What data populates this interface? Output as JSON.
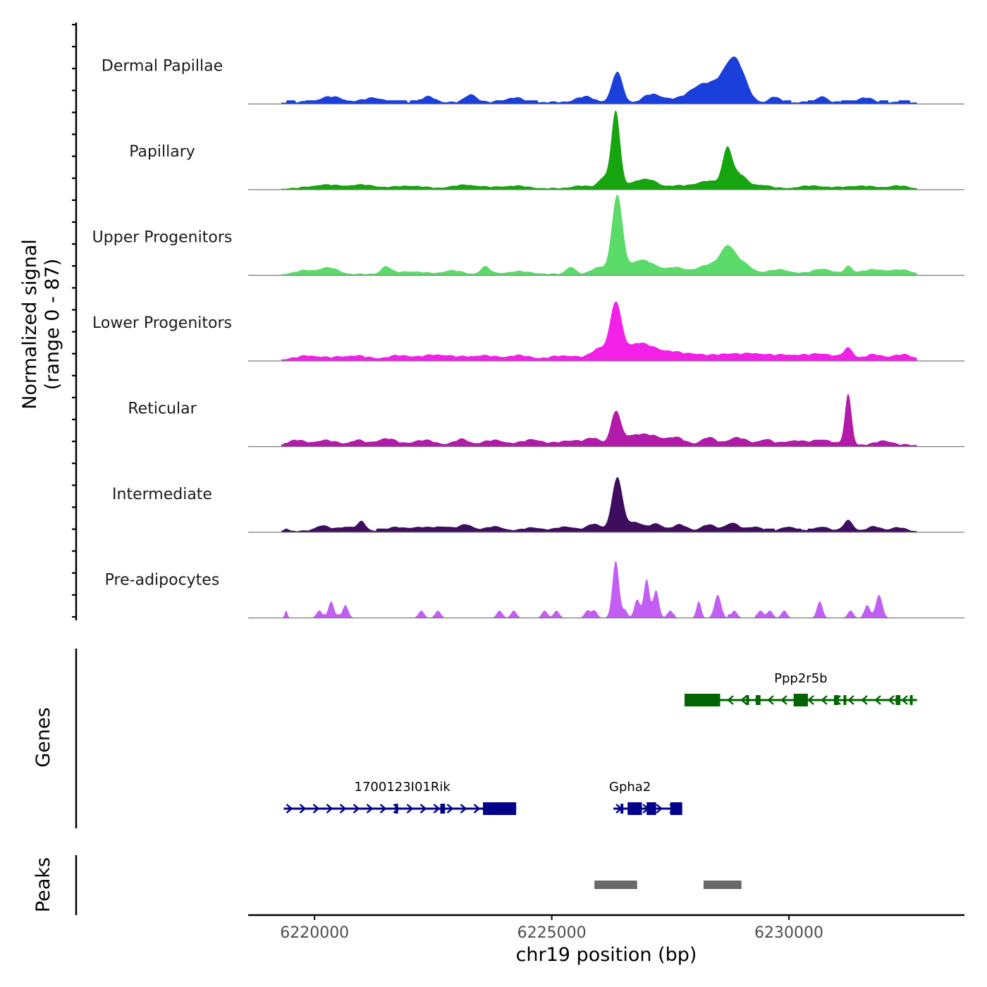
{
  "chart_data": {
    "type": "area",
    "title": "",
    "signal_panel": {
      "ylabel_line1": "Normalized signal",
      "ylabel_line2": "(range 0 - 87)",
      "ylim": [
        0,
        87
      ],
      "x_domain": [
        6218600,
        6233700
      ],
      "data_x_range": [
        6219300,
        6232700
      ],
      "tracks": [
        {
          "name": "Dermal Papillae",
          "color": "#1A3FDB",
          "baseline": 3,
          "peaks": [
            [
              6220350,
              6,
              250
            ],
            [
              6221250,
              5,
              200
            ],
            [
              6222400,
              6,
              150
            ],
            [
              6223300,
              9,
              120
            ],
            [
              6224200,
              5,
              200
            ],
            [
              6225700,
              6,
              200
            ],
            [
              6226380,
              33,
              110
            ],
            [
              6227050,
              6,
              150
            ],
            [
              6227300,
              5,
              200
            ],
            [
              6228200,
              20,
              300
            ],
            [
              6228750,
              30,
              200
            ],
            [
              6228950,
              24,
              180
            ],
            [
              6229700,
              6,
              100
            ],
            [
              6230700,
              7,
              100
            ],
            [
              6231600,
              5,
              150
            ]
          ],
          "bins": [
            [
              6219400,
              6219600
            ],
            [
              6219800,
              6220100
            ],
            [
              6221500,
              6221950
            ],
            [
              6222000,
              6222150
            ],
            [
              6223800,
              6224000
            ],
            [
              6224400,
              6224700
            ],
            [
              6226900,
              6227000
            ],
            [
              6229900,
              6230050
            ],
            [
              6230400,
              6230550
            ],
            [
              6231100,
              6231400
            ],
            [
              6231900,
              6232100
            ],
            [
              6232300,
              6232550
            ]
          ]
        },
        {
          "name": "Papillary",
          "color": "#17A50F",
          "baseline": 2,
          "peaks": [
            [
              6220200,
              4,
              300
            ],
            [
              6221000,
              4,
              300
            ],
            [
              6222000,
              3,
              300
            ],
            [
              6223200,
              4,
              300
            ],
            [
              6224200,
              3,
              300
            ],
            [
              6225600,
              3,
              200
            ],
            [
              6226100,
              12,
              120
            ],
            [
              6226350,
              83,
              90
            ],
            [
              6226800,
              8,
              200
            ],
            [
              6227100,
              6,
              150
            ],
            [
              6227600,
              3,
              300
            ],
            [
              6228300,
              8,
              250
            ],
            [
              6228700,
              40,
              100
            ],
            [
              6228950,
              15,
              150
            ],
            [
              6229400,
              4,
              200
            ],
            [
              6230500,
              3,
              300
            ],
            [
              6231500,
              3,
              300
            ],
            [
              6232300,
              3,
              200
            ]
          ],
          "bins": []
        },
        {
          "name": "Upper Progenitors",
          "color": "#5BDB6A",
          "baseline": 2,
          "peaks": [
            [
              6219800,
              4,
              200
            ],
            [
              6220300,
              7,
              200
            ],
            [
              6221500,
              8,
              100
            ],
            [
              6222000,
              3,
              300
            ],
            [
              6222900,
              4,
              200
            ],
            [
              6223600,
              8,
              100
            ],
            [
              6224300,
              3,
              300
            ],
            [
              6225400,
              8,
              100
            ],
            [
              6226000,
              8,
              150
            ],
            [
              6226380,
              85,
              110
            ],
            [
              6226800,
              12,
              200
            ],
            [
              6227100,
              8,
              200
            ],
            [
              6227600,
              7,
              200
            ],
            [
              6228300,
              10,
              250
            ],
            [
              6228700,
              25,
              150
            ],
            [
              6229000,
              12,
              200
            ],
            [
              6229800,
              5,
              250
            ],
            [
              6230700,
              6,
              200
            ],
            [
              6231250,
              8,
              80
            ],
            [
              6231800,
              5,
              300
            ],
            [
              6232400,
              4,
              200
            ]
          ],
          "bins": []
        },
        {
          "name": "Lower Progenitors",
          "color": "#F320E8",
          "baseline": 3,
          "peaks": [
            [
              6219900,
              4,
              250
            ],
            [
              6220800,
              4,
              300
            ],
            [
              6221800,
              4,
              250
            ],
            [
              6222600,
              5,
              300
            ],
            [
              6223500,
              4,
              300
            ],
            [
              6224300,
              4,
              250
            ],
            [
              6225300,
              4,
              300
            ],
            [
              6226000,
              12,
              150
            ],
            [
              6226350,
              60,
              120
            ],
            [
              6226750,
              15,
              200
            ],
            [
              6227100,
              10,
              200
            ],
            [
              6227500,
              7,
              200
            ],
            [
              6228000,
              6,
              250
            ],
            [
              6228700,
              6,
              250
            ],
            [
              6229300,
              6,
              250
            ],
            [
              6230000,
              5,
              300
            ],
            [
              6230700,
              6,
              250
            ],
            [
              6231250,
              12,
              100
            ],
            [
              6231800,
              5,
              200
            ],
            [
              6232400,
              5,
              200
            ]
          ],
          "bins": []
        },
        {
          "name": "Reticular",
          "color": "#B21AAA",
          "baseline": 3,
          "peaks": [
            [
              6219600,
              5,
              150
            ],
            [
              6220200,
              5,
              250
            ],
            [
              6220900,
              5,
              150
            ],
            [
              6221500,
              7,
              200
            ],
            [
              6222300,
              5,
              250
            ],
            [
              6223100,
              6,
              150
            ],
            [
              6223800,
              5,
              250
            ],
            [
              6224600,
              6,
              200
            ],
            [
              6225400,
              5,
              250
            ],
            [
              6225900,
              7,
              150
            ],
            [
              6226350,
              35,
              100
            ],
            [
              6226700,
              10,
              200
            ],
            [
              6227100,
              9,
              200
            ],
            [
              6227600,
              8,
              200
            ],
            [
              6228300,
              8,
              150
            ],
            [
              6228900,
              8,
              200
            ],
            [
              6229500,
              6,
              150
            ],
            [
              6230100,
              5,
              200
            ],
            [
              6230700,
              6,
              200
            ],
            [
              6231250,
              55,
              70
            ],
            [
              6232000,
              5,
              150
            ]
          ],
          "bins": [
            [
              6219350,
              6219450
            ],
            [
              6219550,
              6219700
            ],
            [
              6220650,
              6220800
            ],
            [
              6221950,
              6222100
            ],
            [
              6230350,
              6230450
            ]
          ]
        },
        {
          "name": "Intermediate",
          "color": "#3E0D5E",
          "baseline": 2,
          "peaks": [
            [
              6219400,
              3,
              50
            ],
            [
              6220150,
              6,
              150
            ],
            [
              6220700,
              5,
              200
            ],
            [
              6221000,
              9,
              80
            ],
            [
              6221700,
              4,
              200
            ],
            [
              6222200,
              4,
              200
            ],
            [
              6222700,
              5,
              200
            ],
            [
              6223200,
              7,
              150
            ],
            [
              6223800,
              5,
              200
            ],
            [
              6224600,
              4,
              200
            ],
            [
              6225300,
              5,
              200
            ],
            [
              6225900,
              8,
              150
            ],
            [
              6226380,
              58,
              110
            ],
            [
              6226750,
              10,
              150
            ],
            [
              6227200,
              8,
              150
            ],
            [
              6227700,
              7,
              150
            ],
            [
              6228300,
              7,
              150
            ],
            [
              6228800,
              9,
              150
            ],
            [
              6229300,
              5,
              150
            ],
            [
              6230000,
              5,
              150
            ],
            [
              6230700,
              5,
              150
            ],
            [
              6231250,
              12,
              100
            ],
            [
              6231800,
              5,
              150
            ],
            [
              6232300,
              4,
              150
            ]
          ],
          "bins": [
            [
              6221300,
              6221500
            ],
            [
              6229500,
              6229700
            ],
            [
              6229950,
              6230050
            ],
            [
              6230150,
              6230250
            ],
            [
              6230400,
              6230500
            ],
            [
              6230600,
              6230700
            ]
          ]
        },
        {
          "name": "Pre-adipocytes",
          "color": "#C25EF4",
          "baseline": 0,
          "peaks": [
            [
              6219400,
              8,
              30
            ],
            [
              6220100,
              8,
              60
            ],
            [
              6220350,
              18,
              60
            ],
            [
              6220650,
              14,
              60
            ],
            [
              6222250,
              8,
              60
            ],
            [
              6222600,
              8,
              60
            ],
            [
              6223900,
              8,
              60
            ],
            [
              6224200,
              8,
              60
            ],
            [
              6224850,
              8,
              60
            ],
            [
              6225100,
              8,
              60
            ],
            [
              6225750,
              8,
              60
            ],
            [
              6225900,
              8,
              60
            ],
            [
              6226350,
              62,
              70
            ],
            [
              6226550,
              8,
              50
            ],
            [
              6226800,
              20,
              60
            ],
            [
              6227000,
              42,
              60
            ],
            [
              6227200,
              30,
              60
            ],
            [
              6227500,
              8,
              60
            ],
            [
              6228100,
              18,
              50
            ],
            [
              6228500,
              25,
              70
            ],
            [
              6228850,
              8,
              60
            ],
            [
              6229400,
              8,
              60
            ],
            [
              6229600,
              8,
              60
            ],
            [
              6229900,
              8,
              60
            ],
            [
              6230650,
              18,
              60
            ],
            [
              6231300,
              8,
              60
            ],
            [
              6231650,
              14,
              60
            ],
            [
              6231900,
              25,
              70
            ]
          ],
          "bins": [
            [
              6220100,
              6220600
            ],
            [
              6220600,
              6220750
            ],
            [
              6226700,
              6226900
            ],
            [
              6227400,
              6227600
            ],
            [
              6228700,
              6228900
            ],
            [
              6229300,
              6229500
            ],
            [
              6231550,
              6231700
            ]
          ]
        }
      ]
    },
    "genes_panel": {
      "ylabel": "Genes",
      "genes": [
        {
          "name": "Ppp2r5b",
          "strand": "-",
          "color": "#006400",
          "row": 0,
          "start": 6227800,
          "end": 6232700,
          "label_x": 6230250,
          "exons": [
            [
              6227800,
              6228550,
              "thick"
            ],
            [
              6229100,
              6229150,
              "thin"
            ],
            [
              6229300,
              6229400,
              "thin"
            ],
            [
              6230100,
              6230400,
              "thick"
            ],
            [
              6230950,
              6231050,
              "thin"
            ],
            [
              6231150,
              6231200,
              "thin"
            ],
            [
              6232250,
              6232350,
              "thin"
            ],
            [
              6232550,
              6232600,
              "thin"
            ]
          ]
        },
        {
          "name": "1700123I01Rik",
          "strand": "+",
          "color": "#00008B",
          "row": 1,
          "start": 6219350,
          "end": 6224250,
          "label_x": 6221850,
          "exons": [
            [
              6221700,
              6221760,
              "thin"
            ],
            [
              6222650,
              6222750,
              "thin"
            ],
            [
              6223550,
              6224250,
              "thick"
            ]
          ]
        },
        {
          "name": "Gpha2",
          "strand": "+",
          "color": "#00008B",
          "row": 1,
          "start": 6226300,
          "end": 6227750,
          "label_x": 6226650,
          "exons": [
            [
              6226450,
              6226480,
              "thin"
            ],
            [
              6226600,
              6226900,
              "thick"
            ],
            [
              6227000,
              6227200,
              "thick"
            ],
            [
              6227500,
              6227750,
              "thick"
            ]
          ]
        }
      ]
    },
    "peaks_panel": {
      "ylabel": "Peaks",
      "color": "#696969",
      "peaks": [
        [
          6225900,
          6226800
        ],
        [
          6228200,
          6229000
        ]
      ]
    },
    "x_axis": {
      "label": "chr19 position (bp)",
      "ticks": [
        6220000,
        6225000,
        6230000
      ],
      "tick_labels": [
        "6220000",
        "6225000",
        "6230000"
      ]
    }
  }
}
